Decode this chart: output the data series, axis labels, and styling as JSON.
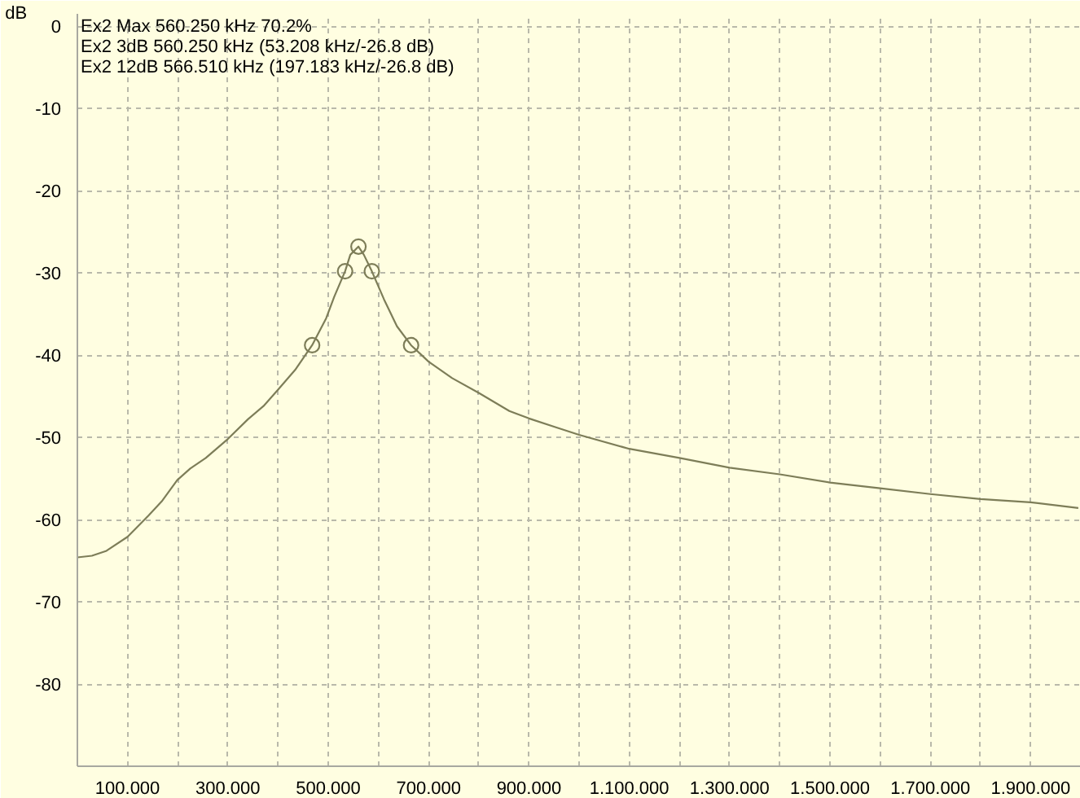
{
  "chart_data": {
    "type": "line",
    "ylabel": "dB",
    "annotations": [
      "Ex2  Max  560.250 kHz 70.2%",
      "Ex2  3dB  560.250 kHz (53.208 kHz/-26.8 dB)",
      "Ex2 12dB  566.510 kHz (197.183 kHz/-26.8 dB)"
    ],
    "xlim": [
      0,
      2000000
    ],
    "ylim": [
      -90,
      1.5
    ],
    "xticks": [
      {
        "value": 100000,
        "label": "100.000"
      },
      {
        "value": 200000,
        "label": null
      },
      {
        "value": 300000,
        "label": "300.000"
      },
      {
        "value": 400000,
        "label": null
      },
      {
        "value": 500000,
        "label": "500.000"
      },
      {
        "value": 600000,
        "label": null
      },
      {
        "value": 700000,
        "label": "700.000"
      },
      {
        "value": 800000,
        "label": null
      },
      {
        "value": 900000,
        "label": "900.000"
      },
      {
        "value": 1000000,
        "label": null
      },
      {
        "value": 1100000,
        "label": "1.100.000"
      },
      {
        "value": 1200000,
        "label": null
      },
      {
        "value": 1300000,
        "label": "1.300.000"
      },
      {
        "value": 1400000,
        "label": null
      },
      {
        "value": 1500000,
        "label": "1.500.000"
      },
      {
        "value": 1600000,
        "label": null
      },
      {
        "value": 1700000,
        "label": "1.700.000"
      },
      {
        "value": 1800000,
        "label": null
      },
      {
        "value": 1900000,
        "label": "1.900.000"
      }
    ],
    "yticks": [
      0,
      -10,
      -20,
      -30,
      -40,
      -50,
      -60,
      -70,
      -80
    ],
    "grid": true,
    "series": [
      {
        "color": "#7d7d58",
        "x": [
          0,
          29000,
          58000,
          100000,
          142000,
          168000,
          199000,
          225000,
          256000,
          300000,
          340000,
          371000,
          400000,
          434000,
          467900,
          496000,
          512000,
          533600,
          544000,
          560250,
          571000,
          586900,
          611000,
          637000,
          665100,
          700000,
          747000,
          800000,
          861000,
          900000,
          955000,
          1000000,
          1100000,
          1200000,
          1300000,
          1400000,
          1500000,
          1600000,
          1700000,
          1800000,
          1900000,
          1995000
        ],
        "values": [
          -64.6,
          -64.4,
          -63.8,
          -62.1,
          -59.5,
          -57.8,
          -55.2,
          -53.8,
          -52.5,
          -50.2,
          -47.8,
          -46.2,
          -44.2,
          -41.8,
          -38.8,
          -35.5,
          -32.9,
          -29.8,
          -27.8,
          -26.8,
          -27.8,
          -29.8,
          -33.2,
          -36.5,
          -38.8,
          -40.8,
          -42.8,
          -44.6,
          -46.8,
          -47.7,
          -48.8,
          -49.7,
          -51.4,
          -52.5,
          -53.7,
          -54.5,
          -55.5,
          -56.2,
          -56.9,
          -57.5,
          -57.9,
          -58.6
        ]
      },
      {
        "type": "scatter",
        "color": "#7d7d58",
        "marker": "circle",
        "x": [
          467900,
          533600,
          560250,
          586900,
          665100
        ],
        "values": [
          -38.8,
          -29.8,
          -26.8,
          -29.8,
          -38.8
        ]
      }
    ]
  }
}
